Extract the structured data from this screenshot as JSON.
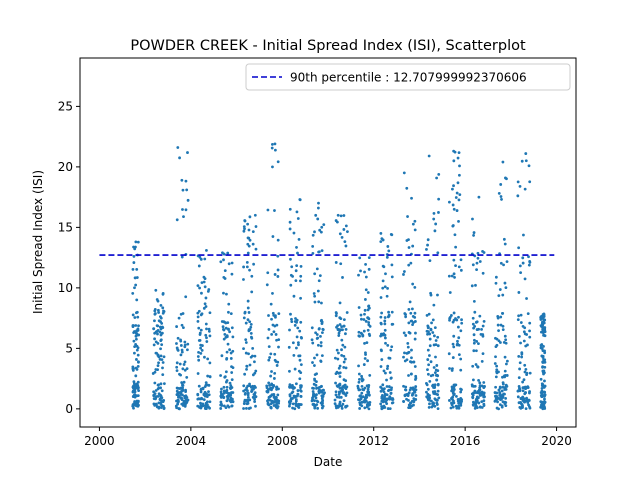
{
  "chart_data": {
    "type": "scatter",
    "title": "POWDER CREEK - Initial Spread Index (ISI), Scatterplot",
    "xlabel": "Date",
    "ylabel": "Initial Spread Index (ISI)",
    "xlim": [
      1999.15,
      2020.85
    ],
    "ylim": [
      -1.5,
      29.0
    ],
    "xticks": [
      2000,
      2004,
      2008,
      2012,
      2016,
      2020
    ],
    "yticks": [
      0,
      5,
      10,
      15,
      20,
      25
    ],
    "legend_position": "top-right",
    "point_color": "#1f77b4",
    "reference_line": {
      "label": "90th percentile : 12.707999992370606",
      "value": 12.707999992370606,
      "x_range": [
        2000.0,
        2019.9
      ],
      "color": "#0000cc",
      "style": "dashed"
    },
    "series": [
      {
        "seasons": [
          {
            "start": 2001.45,
            "end": 2001.72,
            "max": 13.8
          },
          {
            "start": 2002.35,
            "end": 2002.85,
            "max": 9.8
          },
          {
            "start": 2003.35,
            "end": 2003.88,
            "max": 21.6
          },
          {
            "start": 2004.3,
            "end": 2004.85,
            "max": 13.1
          },
          {
            "start": 2005.3,
            "end": 2005.85,
            "max": 12.9
          },
          {
            "start": 2006.3,
            "end": 2006.85,
            "max": 16.0
          },
          {
            "start": 2007.3,
            "end": 2007.85,
            "max": 21.9
          },
          {
            "start": 2008.3,
            "end": 2008.85,
            "max": 17.3
          },
          {
            "start": 2009.3,
            "end": 2009.85,
            "max": 17.0
          },
          {
            "start": 2010.3,
            "end": 2010.85,
            "max": 16.0
          },
          {
            "start": 2011.3,
            "end": 2011.85,
            "max": 12.5
          },
          {
            "start": 2012.3,
            "end": 2012.85,
            "max": 14.5
          },
          {
            "start": 2013.3,
            "end": 2013.85,
            "max": 19.5
          },
          {
            "start": 2014.3,
            "end": 2014.85,
            "max": 20.9
          },
          {
            "start": 2015.3,
            "end": 2015.85,
            "max": 21.3
          },
          {
            "start": 2016.3,
            "end": 2016.85,
            "max": 17.5
          },
          {
            "start": 2017.3,
            "end": 2017.85,
            "max": 20.4
          },
          {
            "start": 2018.3,
            "end": 2018.85,
            "max": 21.1
          },
          {
            "start": 2019.3,
            "end": 2019.5,
            "max": 7.8
          }
        ]
      }
    ]
  }
}
